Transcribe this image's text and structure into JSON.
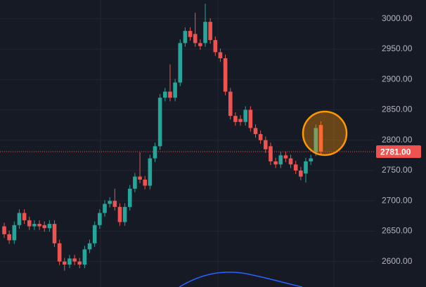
{
  "chart_data": {
    "type": "candlestick",
    "open": [
      2658,
      2645,
      2635,
      2660,
      2680,
      2668,
      2658,
      2662,
      2660,
      2655,
      2662,
      2630,
      2600,
      2595,
      2605,
      2600,
      2595,
      2620,
      2630,
      2660,
      2680,
      2695,
      2700,
      2690,
      2665,
      2690,
      2720,
      2740,
      2735,
      2725,
      2770,
      2790,
      2870,
      2880,
      2870,
      2895,
      2960,
      2980,
      2975,
      2960,
      2960,
      2995,
      2965,
      2945,
      2935,
      2880,
      2840,
      2835,
      2830,
      2850,
      2820,
      2810,
      2800,
      2790,
      2765,
      2760,
      2775,
      2770,
      2760,
      2750,
      2745,
      2765,
      2780,
      2825
    ],
    "high": [
      2664,
      2651,
      2666,
      2686,
      2686,
      2674,
      2668,
      2668,
      2666,
      2668,
      2668,
      2636,
      2606,
      2611,
      2611,
      2606,
      2626,
      2636,
      2666,
      2686,
      2701,
      2706,
      2720,
      2696,
      2696,
      2726,
      2746,
      2780,
      2741,
      2776,
      2796,
      2876,
      2886,
      2925,
      2901,
      2966,
      2986,
      2986,
      3010,
      2966,
      3025,
      3001,
      2971,
      2951,
      2941,
      2886,
      2846,
      2841,
      2856,
      2856,
      2826,
      2816,
      2806,
      2796,
      2771,
      2781,
      2781,
      2776,
      2766,
      2756,
      2771,
      2776,
      2826,
      2831
    ],
    "low": [
      2639,
      2629,
      2629,
      2654,
      2662,
      2652,
      2652,
      2652,
      2649,
      2649,
      2624,
      2594,
      2585,
      2589,
      2594,
      2589,
      2589,
      2614,
      2624,
      2654,
      2674,
      2689,
      2684,
      2659,
      2659,
      2684,
      2714,
      2729,
      2719,
      2719,
      2764,
      2784,
      2864,
      2864,
      2864,
      2889,
      2954,
      2964,
      2954,
      2949,
      2954,
      2959,
      2939,
      2929,
      2874,
      2834,
      2824,
      2824,
      2824,
      2814,
      2804,
      2794,
      2779,
      2759,
      2754,
      2754,
      2764,
      2754,
      2744,
      2734,
      2730,
      2759,
      2774,
      2775
    ],
    "close": [
      2645,
      2635,
      2660,
      2680,
      2668,
      2658,
      2662,
      2658,
      2655,
      2662,
      2630,
      2600,
      2595,
      2605,
      2600,
      2595,
      2620,
      2630,
      2660,
      2680,
      2695,
      2700,
      2690,
      2665,
      2690,
      2720,
      2740,
      2735,
      2725,
      2770,
      2790,
      2870,
      2880,
      2870,
      2895,
      2960,
      2980,
      2970,
      2960,
      2955,
      2995,
      2965,
      2945,
      2935,
      2880,
      2840,
      2830,
      2830,
      2850,
      2820,
      2810,
      2800,
      2785,
      2765,
      2760,
      2775,
      2770,
      2760,
      2750,
      2740,
      2765,
      2770,
      2820,
      2781
    ],
    "up_color": "#26a69a",
    "down_color": "#ef5350",
    "ylim": [
      2558,
      3031
    ],
    "yticks": [
      {
        "value": 2600,
        "label": "2600.00"
      },
      {
        "value": 2650,
        "label": "2650.00"
      },
      {
        "value": 2700,
        "label": "2700.00"
      },
      {
        "value": 2750,
        "label": "2750.00"
      },
      {
        "value": 2800,
        "label": "2800.00"
      },
      {
        "value": 2850,
        "label": "2850.00"
      },
      {
        "value": 2900,
        "label": "2900.00"
      },
      {
        "value": 2950,
        "label": "2950.00"
      },
      {
        "value": 3000,
        "label": "3000.00"
      }
    ],
    "last_price": {
      "value": 2781,
      "label": "2781.00"
    },
    "grid": true
  }
}
